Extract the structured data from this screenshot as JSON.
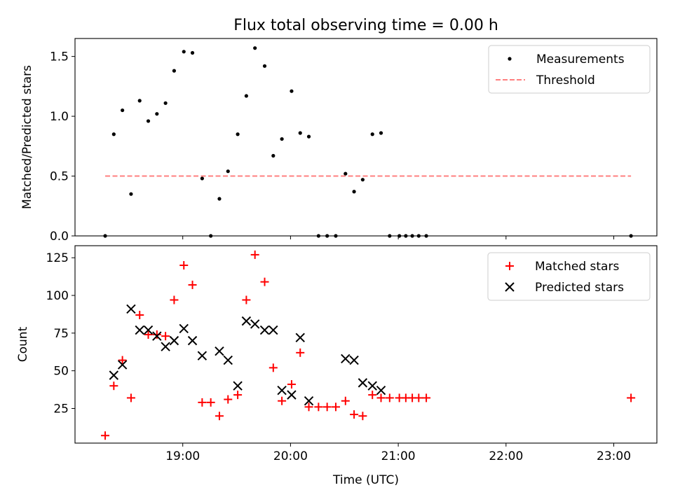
{
  "chart_data": {
    "type": "scatter",
    "title": "Flux total observing time = 0.00 h",
    "xlabel": "Time (UTC)",
    "x_unit": "hours (UTC)",
    "xlim": [
      18.0,
      23.4
    ],
    "xticks": [
      19,
      20,
      21,
      22,
      23
    ],
    "xtick_labels": [
      "19:00",
      "20:00",
      "21:00",
      "22:00",
      "23:00"
    ],
    "panels": [
      {
        "id": "ratio",
        "ylabel": "Matched/Predicted stars",
        "ylim": [
          0,
          1.65
        ],
        "yticks": [
          0,
          0.5,
          1.0,
          1.5
        ],
        "ytick_labels": [
          "0.0",
          "0.5",
          "1.0",
          "1.5"
        ],
        "legend": {
          "placement": "top-right",
          "entries": [
            "Measurements",
            "Threshold"
          ]
        },
        "series": [
          {
            "name": "Measurements",
            "kind": "dot",
            "color": "#000000",
            "x": [
              18.28,
              18.36,
              18.44,
              18.52,
              18.6,
              18.68,
              18.76,
              18.84,
              18.92,
              19.01,
              19.09,
              19.18,
              19.26,
              19.34,
              19.42,
              19.51,
              19.59,
              19.67,
              19.76,
              19.84,
              19.92,
              20.01,
              20.09,
              20.17,
              20.26,
              20.34,
              20.42,
              20.51,
              20.59,
              20.67,
              20.76,
              20.84,
              20.92,
              21.01,
              21.07,
              21.13,
              21.19,
              21.26,
              23.16
            ],
            "y": [
              0.0,
              0.85,
              1.05,
              0.35,
              1.13,
              0.96,
              1.02,
              1.11,
              1.38,
              1.54,
              1.53,
              0.48,
              0.0,
              0.31,
              0.54,
              0.85,
              1.17,
              1.57,
              1.42,
              0.67,
              0.81,
              1.21,
              0.86,
              0.83,
              0.0,
              0.0,
              0.0,
              0.52,
              0.37,
              0.47,
              0.85,
              0.86,
              0.0,
              0.0,
              0.0,
              0.0,
              0.0,
              0.0,
              0.0
            ]
          },
          {
            "name": "Threshold",
            "kind": "dashed-line",
            "color": "#ff7f7f",
            "x": [
              18.28,
              23.16
            ],
            "y": [
              0.5,
              0.5
            ]
          }
        ]
      },
      {
        "id": "counts",
        "ylabel": "Count",
        "ylim": [
          2,
          133
        ],
        "yticks": [
          25,
          50,
          75,
          100,
          125
        ],
        "ytick_labels": [
          "25",
          "50",
          "75",
          "100",
          "125"
        ],
        "legend": {
          "placement": "top-right",
          "entries": [
            "Matched stars",
            "Predicted stars"
          ]
        },
        "series": [
          {
            "name": "Matched stars",
            "kind": "plus",
            "color": "#ff0000",
            "x": [
              18.28,
              18.36,
              18.44,
              18.52,
              18.6,
              18.68,
              18.76,
              18.84,
              18.92,
              19.01,
              19.09,
              19.18,
              19.26,
              19.34,
              19.42,
              19.51,
              19.59,
              19.67,
              19.76,
              19.84,
              19.92,
              20.01,
              20.09,
              20.17,
              20.26,
              20.34,
              20.42,
              20.51,
              20.59,
              20.67,
              20.76,
              20.84,
              20.92,
              21.01,
              21.07,
              21.13,
              21.19,
              21.26,
              23.16
            ],
            "y": [
              7,
              40,
              57,
              32,
              87,
              74,
              74,
              73,
              97,
              120,
              107,
              29,
              29,
              20,
              31,
              34,
              97,
              127,
              109,
              52,
              30,
              41,
              62,
              26,
              26,
              26,
              26,
              30,
              21,
              20,
              34,
              32,
              32,
              32,
              32,
              32,
              32,
              32,
              32
            ]
          },
          {
            "name": "Predicted stars",
            "kind": "x",
            "color": "#000000",
            "x": [
              18.36,
              18.44,
              18.52,
              18.6,
              18.68,
              18.76,
              18.84,
              18.92,
              19.01,
              19.09,
              19.18,
              19.34,
              19.42,
              19.51,
              19.59,
              19.67,
              19.76,
              19.84,
              19.92,
              20.01,
              20.09,
              20.17,
              20.51,
              20.59,
              20.67,
              20.76,
              20.84
            ],
            "y": [
              47,
              54,
              91,
              77,
              77,
              73,
              66,
              70,
              78,
              70,
              60,
              63,
              57,
              40,
              83,
              81,
              77,
              77,
              37,
              34,
              72,
              30,
              58,
              57,
              42,
              40,
              37
            ]
          }
        ]
      }
    ]
  }
}
